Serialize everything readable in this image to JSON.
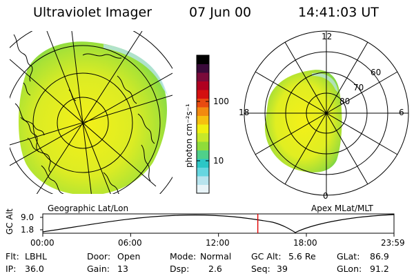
{
  "header": {
    "title": "Ultraviolet Imager",
    "date": "07 Jun 00",
    "time": "14:41:03 UT"
  },
  "colorbar": {
    "unit_label": "photon cm⁻²s⁻¹",
    "tick_100": "100",
    "tick_10": "10",
    "colors": [
      "#e8f4f8",
      "#b8e4ee",
      "#66d6e0",
      "#2cc7c6",
      "#4fd08a",
      "#8fdc3a",
      "#c6e82a",
      "#f0f010",
      "#f6c010",
      "#f28a10",
      "#e84a10",
      "#d41010",
      "#b00020",
      "#7a0a3a",
      "#3a0a3a",
      "#000000"
    ]
  },
  "left_map": {
    "label": "Geographic Lat/Lon"
  },
  "right_map": {
    "label": "Apex MLat/MLT",
    "mlt_labels": {
      "top": "12",
      "left": "18",
      "right": "6",
      "bottom": "0"
    },
    "lat_labels": [
      "60",
      "70",
      "80"
    ]
  },
  "gc_plot": {
    "ylabel": "GC Alt",
    "ytick_top": "9.0",
    "ytick_bottom": "1.8",
    "xticks": [
      "00:00",
      "06:00",
      "12:00",
      "18:00",
      "23:59"
    ],
    "marker_time": "14:41"
  },
  "info": {
    "flt_label": "Flt:",
    "flt_value": "LBHL",
    "ip_label": "IP:",
    "ip_value": "36.0",
    "door_label": "Door:",
    "door_value": "Open",
    "gain_label": "Gain:",
    "gain_value": "13",
    "mode_label": "Mode:",
    "mode_value": "Normal",
    "dsp_label": "Dsp:",
    "dsp_value": "2.6",
    "gcalt_label": "GC Alt:",
    "gcalt_value": "5.6 Re",
    "seq_label": "Seq:",
    "seq_value": "39",
    "glat_label": "GLat:",
    "glat_value": "86.9",
    "glon_label": "GLon:",
    "glon_value": "91.2"
  }
}
